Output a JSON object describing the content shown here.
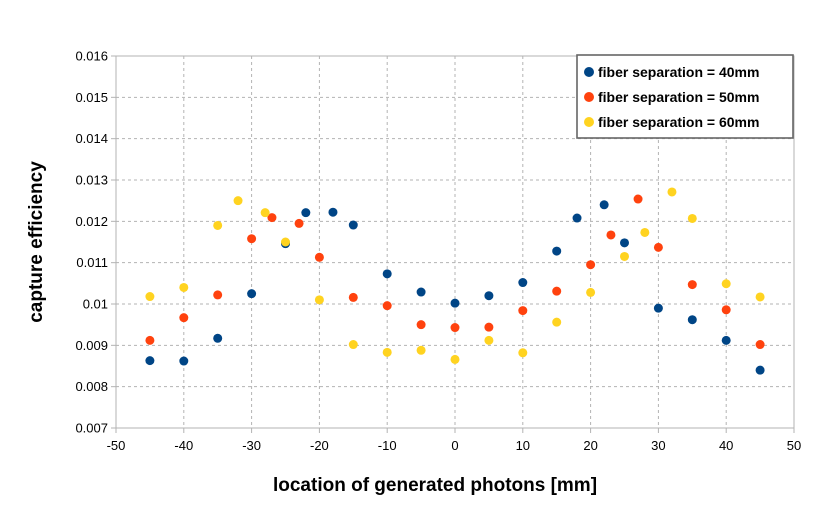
{
  "chart_data": {
    "type": "scatter",
    "title": "",
    "xlabel": "location of generated photons [mm]",
    "ylabel": "capture efficiency",
    "xlim": [
      -50,
      50
    ],
    "ylim": [
      0.007,
      0.016
    ],
    "x_ticks": [
      "-50",
      "-40",
      "-30",
      "-20",
      "-10",
      "0",
      "10",
      "20",
      "30",
      "40",
      "50"
    ],
    "y_ticks": [
      "0.007",
      "0.008",
      "0.009",
      "0.01",
      "0.011",
      "0.012",
      "0.013",
      "0.014",
      "0.015",
      "0.016"
    ],
    "grid": true,
    "grid_style": "dashed",
    "legend_position": "top-right",
    "series": [
      {
        "name": "fiber separation = 40mm",
        "color": "#004586",
        "x": [
          -45,
          -40,
          -35,
          -30,
          -25,
          -22,
          -18,
          -15,
          -10,
          -5,
          0,
          5,
          10,
          15,
          18,
          22,
          25,
          30,
          35,
          40,
          45
        ],
        "y": [
          0.00863,
          0.00862,
          0.00917,
          0.01025,
          0.01146,
          0.01221,
          0.01222,
          0.01191,
          0.01073,
          0.01029,
          0.01002,
          0.0102,
          0.01052,
          0.01128,
          0.01208,
          0.0124,
          0.01148,
          0.0099,
          0.00962,
          0.00912,
          0.0084
        ]
      },
      {
        "name": "fiber separation = 50mm",
        "color": "#ff420e",
        "x": [
          -45,
          -40,
          -35,
          -30,
          -27,
          -23,
          -20,
          -15,
          -10,
          -5,
          0,
          5,
          10,
          15,
          20,
          23,
          27,
          30,
          35,
          40,
          45
        ],
        "y": [
          0.00912,
          0.00967,
          0.01022,
          0.01158,
          0.01209,
          0.01195,
          0.01113,
          0.01016,
          0.00996,
          0.0095,
          0.00943,
          0.00944,
          0.00984,
          0.01031,
          0.01095,
          0.01167,
          0.01254,
          0.01137,
          0.01047,
          0.00986,
          0.00902
        ]
      },
      {
        "name": "fiber separation = 60mm",
        "color": "#ffd320",
        "x": [
          -45,
          -40,
          -35,
          -32,
          -28,
          -25,
          -20,
          -15,
          -10,
          -5,
          0,
          5,
          10,
          15,
          20,
          25,
          28,
          32,
          35,
          40,
          45
        ],
        "y": [
          0.01018,
          0.0104,
          0.0119,
          0.0125,
          0.01221,
          0.0115,
          0.0101,
          0.00902,
          0.00883,
          0.00888,
          0.00866,
          0.00912,
          0.00882,
          0.00956,
          0.01028,
          0.01115,
          0.01173,
          0.01271,
          0.01207,
          0.01049,
          0.01017
        ]
      }
    ]
  }
}
